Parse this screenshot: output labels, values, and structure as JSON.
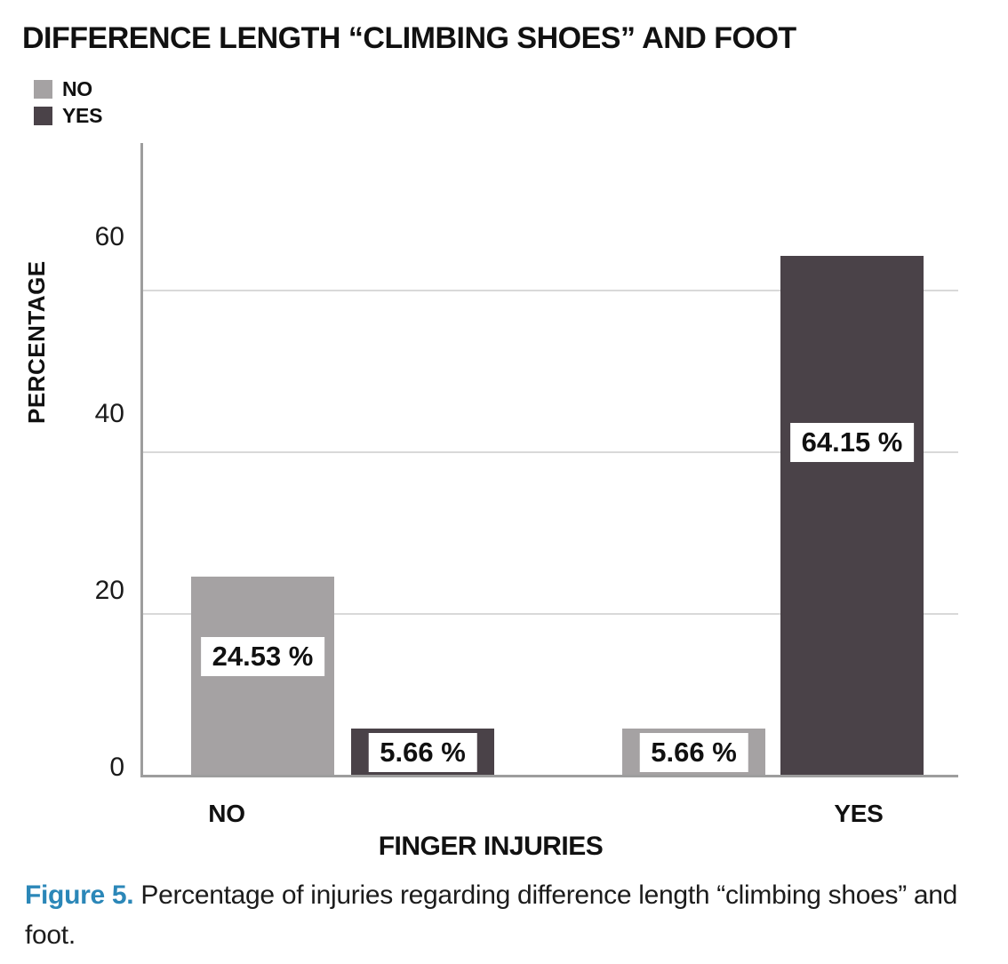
{
  "title": "DIFFERENCE LENGTH “CLIMBING SHOES” AND FOOT",
  "chart_data": {
    "type": "bar",
    "title": "DIFFERENCE LENGTH “CLIMBING SHOES” AND FOOT",
    "xlabel": "FINGER INJURIES",
    "ylabel": "PERCENTAGE",
    "categories": [
      "NO",
      "YES"
    ],
    "series": [
      {
        "name": "NO",
        "color": "#a5a2a3",
        "values": [
          24.53,
          5.66
        ]
      },
      {
        "name": "YES",
        "color": "#4a4248",
        "values": [
          5.66,
          64.15
        ]
      }
    ],
    "value_labels": [
      "24.53 %",
      "5.66 %",
      "5.66 %",
      "64.15 %"
    ],
    "yticks": [
      0,
      20,
      40,
      60
    ],
    "ylim": [
      0,
      78
    ],
    "grid": "horizontal",
    "legend_position": "top-left",
    "gridline_color": "#d9d9d9",
    "axis_color": "#9d9d9d"
  },
  "legend": [
    {
      "label": "NO",
      "color": "#a5a2a3"
    },
    {
      "label": "YES",
      "color": "#4a4248"
    }
  ],
  "caption": {
    "label": "Figure 5.",
    "text": " Percentage of injuries regarding difference length “climbing shoes” and foot.",
    "label_color": "#2b87b8"
  }
}
